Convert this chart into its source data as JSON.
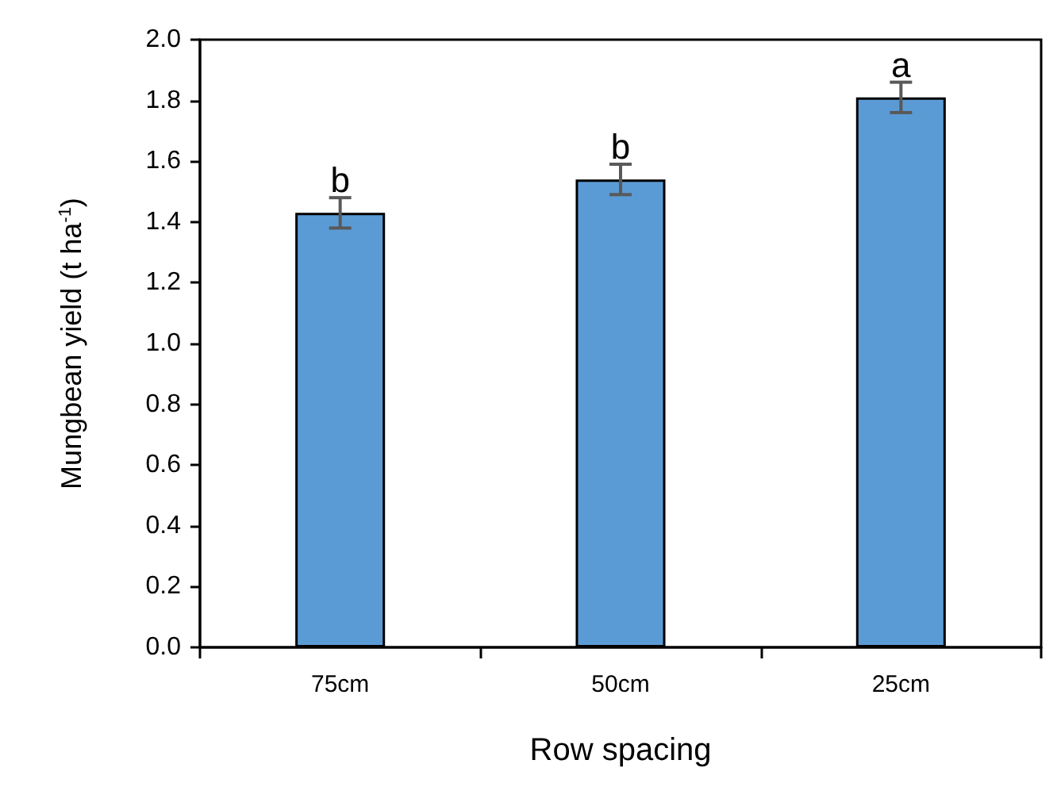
{
  "chart_data": {
    "type": "bar",
    "xlabel": "Row spacing",
    "ylabel": "Mungbean yield (t ha$^{-1}$)",
    "categories": [
      "75cm",
      "50cm",
      "25cm"
    ],
    "values": [
      1.43,
      1.54,
      1.81
    ],
    "errors": [
      0.05,
      0.05,
      0.05
    ],
    "color": "#5b9bd5",
    "ylim": [
      0,
      2.0
    ],
    "yticks": [
      {
        "value": 0,
        "label": "0.0"
      },
      {
        "value": 0.2,
        "label": "0.2"
      },
      {
        "value": 0.4,
        "label": "0.4"
      },
      {
        "value": 0.6,
        "label": "0.6"
      },
      {
        "value": 0.8,
        "label": "0.8"
      },
      {
        "value": 1.0,
        "label": "1.0"
      },
      {
        "value": 1.2,
        "label": "1.2"
      },
      {
        "value": 1.4,
        "label": "1.4"
      },
      {
        "value": 1.6,
        "label": "1.6"
      },
      {
        "value": 1.8,
        "label": "1.8"
      },
      {
        "value": 2.0,
        "label": "2.0"
      }
    ],
    "annotations": [
      "b",
      "b",
      "a"
    ],
    "grid": false
  }
}
